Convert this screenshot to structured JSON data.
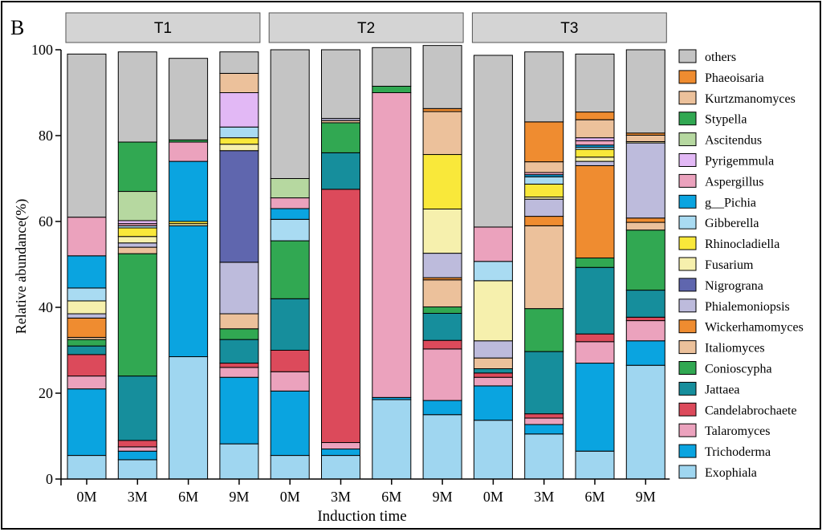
{
  "panel_letter": "B",
  "chart_data": {
    "type": "bar",
    "stacked": true,
    "ylabel": "Relative abundance(%)",
    "xlabel": "Induction time",
    "ylim": [
      0,
      100
    ],
    "yticks": [
      0,
      20,
      40,
      60,
      80,
      100
    ],
    "legend_position": "right",
    "groups": [
      {
        "label": "T1",
        "categories": [
          "0M",
          "3M",
          "6M",
          "9M"
        ]
      },
      {
        "label": "T2",
        "categories": [
          "0M",
          "3M",
          "6M",
          "9M"
        ]
      },
      {
        "label": "T3",
        "categories": [
          "0M",
          "3M",
          "6M",
          "9M"
        ]
      }
    ],
    "categories": [
      "0M",
      "3M",
      "6M",
      "9M",
      "0M",
      "3M",
      "6M",
      "9M",
      "0M",
      "3M",
      "6M",
      "9M"
    ],
    "series": [
      {
        "name": "Exophiala",
        "color": "#9fd6f0",
        "values": [
          5.5,
          4.5,
          28.5,
          8.2,
          5.5,
          5.5,
          18.5,
          15.0,
          13.7,
          10.5,
          6.5,
          26.5
        ]
      },
      {
        "name": "Trichoderma",
        "color": "#0aa4e0",
        "values": [
          15.5,
          2.0,
          30.5,
          15.5,
          15.0,
          1.5,
          0.5,
          3.3,
          8.0,
          2.2,
          20.5,
          5.7
        ]
      },
      {
        "name": "Talaromyces",
        "color": "#eba2bd",
        "values": [
          3.0,
          1.0,
          0.0,
          2.3,
          4.5,
          1.5,
          0.0,
          12.0,
          2.0,
          1.5,
          5.0,
          4.7
        ]
      },
      {
        "name": "Candelabrochaete",
        "color": "#dc4a5b",
        "values": [
          5.0,
          1.5,
          0.0,
          1.0,
          5.0,
          59.0,
          0.0,
          2.0,
          1.0,
          1.0,
          1.8,
          0.8
        ]
      },
      {
        "name": "Jattaea",
        "color": "#168e9c",
        "values": [
          2.0,
          15.0,
          0.0,
          5.5,
          12.0,
          8.5,
          0.0,
          6.3,
          1.0,
          14.5,
          15.5,
          6.3
        ]
      },
      {
        "name": "Conioscypha",
        "color": "#31a852",
        "values": [
          1.5,
          28.5,
          0.0,
          2.5,
          13.5,
          7.0,
          0.0,
          1.5,
          0.0,
          10.0,
          2.2,
          14.0
        ]
      },
      {
        "name": "Italiomyces",
        "color": "#ecc19b",
        "values": [
          0.5,
          1.5,
          0.0,
          3.5,
          0.0,
          0.5,
          0.0,
          6.3,
          2.5,
          19.3,
          0.0,
          1.8
        ]
      },
      {
        "name": "Wickerhamomyces",
        "color": "#ef8c30",
        "values": [
          4.5,
          0.0,
          0.0,
          0.0,
          0.0,
          0.0,
          0.0,
          0.5,
          0.0,
          2.2,
          21.5,
          1.0
        ]
      },
      {
        "name": "Phialemoniopsis",
        "color": "#bdbbdc",
        "values": [
          1.0,
          1.0,
          0.0,
          12.0,
          0.0,
          0.5,
          0.0,
          5.7,
          4.0,
          4.0,
          1.0,
          17.5
        ]
      },
      {
        "name": "Nigrograna",
        "color": "#5f66ae",
        "values": [
          0.0,
          0.0,
          0.0,
          26.0,
          0.0,
          0.0,
          0.0,
          0.0,
          0.0,
          0.0,
          0.0,
          0.0
        ]
      },
      {
        "name": "Fusarium",
        "color": "#f6f0ad",
        "values": [
          3.0,
          1.5,
          0.5,
          1.5,
          0.0,
          0.0,
          0.0,
          10.3,
          14.0,
          0.5,
          1.0,
          0.3
        ]
      },
      {
        "name": "Rhinocladiella",
        "color": "#f9e83a",
        "values": [
          0.0,
          2.0,
          0.5,
          1.5,
          0.0,
          0.0,
          0.0,
          12.7,
          0.0,
          3.0,
          1.8,
          0.0
        ]
      },
      {
        "name": "Gibberella",
        "color": "#a9dbf2",
        "values": [
          3.0,
          0.5,
          0.0,
          2.5,
          5.0,
          0.0,
          0.0,
          0.0,
          4.5,
          1.7,
          0.5,
          0.0
        ]
      },
      {
        "name": "g__Pichia",
        "color": "#0aa4e0",
        "values": [
          7.5,
          0.0,
          14.0,
          0.0,
          2.5,
          0.0,
          0.0,
          0.0,
          0.0,
          0.5,
          0.5,
          0.0
        ]
      },
      {
        "name": "Aspergillus",
        "color": "#eba2bd",
        "values": [
          9.0,
          0.5,
          4.5,
          0.0,
          2.5,
          0.0,
          71.0,
          0.0,
          8.0,
          0.5,
          1.0,
          0.0
        ]
      },
      {
        "name": "Pyrigemmula",
        "color": "#e2b8f5",
        "values": [
          0.0,
          0.7,
          0.0,
          8.0,
          0.0,
          0.0,
          0.0,
          0.0,
          0.0,
          0.0,
          0.7,
          0.0
        ]
      },
      {
        "name": "Ascitendus",
        "color": "#b6d8a0",
        "values": [
          0.0,
          6.8,
          0.0,
          0.0,
          4.5,
          0.0,
          0.0,
          0.0,
          0.0,
          0.0,
          0.0,
          0.0
        ]
      },
      {
        "name": "Stypella",
        "color": "#31a852",
        "values": [
          0.0,
          11.5,
          0.5,
          0.0,
          0.0,
          0.0,
          1.5,
          0.0,
          0.0,
          0.0,
          0.0,
          0.0
        ]
      },
      {
        "name": "Kurtzmanomyces",
        "color": "#ecc19b",
        "values": [
          0.0,
          0.0,
          0.0,
          4.5,
          0.0,
          0.0,
          0.0,
          10.0,
          0.0,
          2.5,
          4.2,
          1.5
        ]
      },
      {
        "name": "Phaeoisaria",
        "color": "#ef8c30",
        "values": [
          0.0,
          0.0,
          0.0,
          0.0,
          0.0,
          0.0,
          0.0,
          0.7,
          0.0,
          9.3,
          1.8,
          0.5
        ]
      },
      {
        "name": "others",
        "color": "#c4c4c4",
        "values": [
          38.0,
          21.0,
          19.0,
          5.0,
          30.0,
          16.0,
          9.0,
          14.7,
          40.0,
          16.3,
          13.5,
          19.4
        ]
      }
    ]
  }
}
